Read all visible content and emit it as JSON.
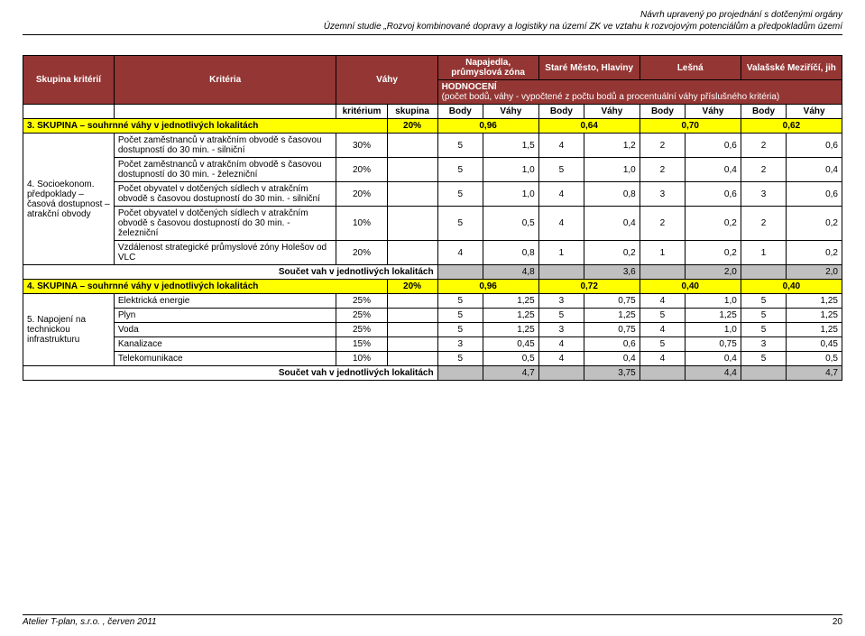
{
  "header": {
    "line1": "Návrh upravený po projednání s dotčenými orgány",
    "line2": "Územní studie „Rozvoj kombinované dopravy a logistiky na území ZK ve vztahu k rozvojovým potenciálům a předpokladům území"
  },
  "table": {
    "head": {
      "col_skupina": "Skupina kritérií",
      "col_kriteria": "Kritéria",
      "col_vahy": "Váhy",
      "loc1": "Napajedla, průmyslová zóna",
      "loc2": "Staré Město, Hlaviny",
      "loc3": "Lešná",
      "loc4": "Valašské Meziříčí, jih",
      "hodnoceni": "HODNOCENÍ",
      "hodnoceni_sub": "(počet bodů, váhy - vypočtené z počtu bodů a procentuální váhy příslušného kritéria)",
      "kr": "kritérium",
      "sk": "skupina",
      "body": "Body",
      "vahy_c": "Váhy"
    },
    "skupina3": {
      "label": "3. SKUPINA – souhrnné váhy v jednotlivých lokalitách",
      "pct": "20%",
      "v1": "0,96",
      "v2": "0,64",
      "v3": "0,70",
      "v4": "0,62"
    },
    "group4": {
      "left": "4. Socioekonom. předpoklady – časová dostupnost – atrakční obvody",
      "rows": [
        {
          "krit": "Počet zaměstnanců v atrakčním obvodě s časovou dostupností do 30 min. - silniční",
          "p": "30%",
          "b1": "5",
          "v1": "1,5",
          "b2": "4",
          "v2": "1,2",
          "b3": "2",
          "v3": "0,6",
          "b4": "2",
          "v4": "0,6"
        },
        {
          "krit": "Počet zaměstnanců v atrakčním obvodě s časovou dostupností do 30 min. - železniční",
          "p": "20%",
          "b1": "5",
          "v1": "1,0",
          "b2": "5",
          "v2": "1,0",
          "b3": "2",
          "v3": "0,4",
          "b4": "2",
          "v4": "0,4"
        },
        {
          "krit": "Počet obyvatel v dotčených sídlech v atrakčním obvodě s časovou dostupností do 30 min. - silniční",
          "p": "20%",
          "b1": "5",
          "v1": "1,0",
          "b2": "4",
          "v2": "0,8",
          "b3": "3",
          "v3": "0,6",
          "b4": "3",
          "v4": "0,6"
        },
        {
          "krit": "Počet obyvatel v dotčených sídlech v atrakčním obvodě s časovou dostupností do 30 min. - železniční",
          "p": "10%",
          "b1": "5",
          "v1": "0,5",
          "b2": "4",
          "v2": "0,4",
          "b3": "2",
          "v3": "0,2",
          "b4": "2",
          "v4": "0,2"
        },
        {
          "krit": "Vzdálenost strategické průmyslové zóny Holešov od VLC",
          "p": "20%",
          "b1": "4",
          "v1": "0,8",
          "b2": "1",
          "v2": "0,2",
          "b3": "1",
          "v3": "0,2",
          "b4": "1",
          "v4": "0,2"
        }
      ],
      "soucet": {
        "label": "Součet vah v jednotlivých lokalitách",
        "v1": "4,8",
        "v2": "3,6",
        "v3": "2,0",
        "v4": "2,0"
      }
    },
    "skupina4": {
      "label": "4. SKUPINA – souhrnné váhy v jednotlivých lokalitách",
      "pct": "20%",
      "v1": "0,96",
      "v2": "0,72",
      "v3": "0,40",
      "v4": "0,40"
    },
    "group5": {
      "left": "5. Napojení na technickou infrastrukturu",
      "rows": [
        {
          "krit": "Elektrická energie",
          "p": "25%",
          "b1": "5",
          "v1": "1,25",
          "b2": "3",
          "v2": "0,75",
          "b3": "4",
          "v3": "1,0",
          "b4": "5",
          "v4": "1,25"
        },
        {
          "krit": "Plyn",
          "p": "25%",
          "b1": "5",
          "v1": "1,25",
          "b2": "5",
          "v2": "1,25",
          "b3": "5",
          "v3": "1,25",
          "b4": "5",
          "v4": "1,25"
        },
        {
          "krit": "Voda",
          "p": "25%",
          "b1": "5",
          "v1": "1,25",
          "b2": "3",
          "v2": "0,75",
          "b3": "4",
          "v3": "1,0",
          "b4": "5",
          "v4": "1,25"
        },
        {
          "krit": "Kanalizace",
          "p": "15%",
          "b1": "3",
          "v1": "0,45",
          "b2": "4",
          "v2": "0,6",
          "b3": "5",
          "v3": "0,75",
          "b4": "3",
          "v4": "0,45"
        },
        {
          "krit": "Telekomunikace",
          "p": "10%",
          "b1": "5",
          "v1": "0,5",
          "b2": "4",
          "v2": "0,4",
          "b3": "4",
          "v3": "0,4",
          "b4": "5",
          "v4": "0,5"
        }
      ],
      "soucet": {
        "label": "Součet vah v jednotlivých lokalitách",
        "v1": "4,7",
        "v2": "3,75",
        "v3": "4,4",
        "v4": "4,7"
      }
    }
  },
  "footer": {
    "left": "Atelier T-plan, s.r.o. , červen 2011",
    "page": "20"
  },
  "colors": {
    "header_bg": "#943634",
    "highlight": "#ffff00",
    "shade": "#c0c0c0"
  }
}
